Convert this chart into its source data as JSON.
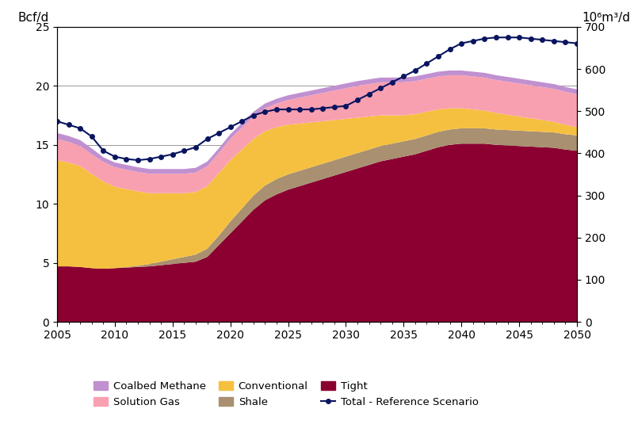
{
  "years": [
    2005,
    2006,
    2007,
    2008,
    2009,
    2010,
    2011,
    2012,
    2013,
    2014,
    2015,
    2016,
    2017,
    2018,
    2019,
    2020,
    2021,
    2022,
    2023,
    2024,
    2025,
    2026,
    2027,
    2028,
    2029,
    2030,
    2031,
    2032,
    2033,
    2034,
    2035,
    2036,
    2037,
    2038,
    2039,
    2040,
    2041,
    2042,
    2043,
    2044,
    2045,
    2046,
    2047,
    2048,
    2049,
    2050
  ],
  "tight": [
    4.7,
    4.7,
    4.65,
    4.55,
    4.5,
    4.55,
    4.6,
    4.65,
    4.7,
    4.8,
    4.9,
    5.0,
    5.1,
    5.5,
    6.5,
    7.5,
    8.5,
    9.5,
    10.3,
    10.8,
    11.2,
    11.5,
    11.8,
    12.1,
    12.4,
    12.7,
    13.0,
    13.3,
    13.6,
    13.8,
    14.0,
    14.2,
    14.5,
    14.8,
    15.0,
    15.1,
    15.1,
    15.1,
    15.0,
    14.95,
    14.9,
    14.85,
    14.8,
    14.75,
    14.6,
    14.5
  ],
  "shale": [
    0.0,
    0.0,
    0.0,
    0.0,
    0.0,
    0.0,
    0.05,
    0.1,
    0.2,
    0.3,
    0.4,
    0.5,
    0.6,
    0.7,
    0.8,
    1.0,
    1.1,
    1.2,
    1.25,
    1.3,
    1.3,
    1.3,
    1.3,
    1.3,
    1.3,
    1.3,
    1.3,
    1.3,
    1.3,
    1.3,
    1.3,
    1.3,
    1.3,
    1.3,
    1.3,
    1.3,
    1.3,
    1.3,
    1.3,
    1.3,
    1.3,
    1.3,
    1.3,
    1.3,
    1.3,
    1.3
  ],
  "conventional": [
    9.0,
    8.8,
    8.55,
    8.0,
    7.4,
    6.9,
    6.6,
    6.3,
    6.0,
    5.8,
    5.6,
    5.4,
    5.3,
    5.3,
    5.3,
    5.2,
    5.0,
    4.8,
    4.6,
    4.4,
    4.2,
    4.0,
    3.8,
    3.6,
    3.4,
    3.2,
    3.0,
    2.8,
    2.6,
    2.4,
    2.2,
    2.1,
    2.0,
    1.9,
    1.8,
    1.7,
    1.6,
    1.5,
    1.4,
    1.3,
    1.2,
    1.1,
    1.0,
    0.9,
    0.8,
    0.7
  ],
  "solution_gas": [
    1.8,
    1.75,
    1.7,
    1.65,
    1.65,
    1.65,
    1.65,
    1.65,
    1.65,
    1.65,
    1.65,
    1.65,
    1.65,
    1.68,
    1.7,
    1.8,
    1.85,
    1.9,
    1.95,
    2.0,
    2.1,
    2.2,
    2.3,
    2.4,
    2.5,
    2.6,
    2.7,
    2.75,
    2.8,
    2.8,
    2.8,
    2.8,
    2.8,
    2.8,
    2.8,
    2.8,
    2.8,
    2.8,
    2.8,
    2.8,
    2.8,
    2.8,
    2.8,
    2.8,
    2.8,
    2.8
  ],
  "coalbed_methane": [
    0.5,
    0.5,
    0.5,
    0.5,
    0.4,
    0.4,
    0.4,
    0.4,
    0.4,
    0.4,
    0.4,
    0.4,
    0.4,
    0.4,
    0.4,
    0.4,
    0.4,
    0.4,
    0.4,
    0.4,
    0.4,
    0.4,
    0.4,
    0.4,
    0.4,
    0.4,
    0.4,
    0.4,
    0.4,
    0.4,
    0.4,
    0.4,
    0.4,
    0.4,
    0.4,
    0.4,
    0.4,
    0.4,
    0.4,
    0.4,
    0.4,
    0.4,
    0.4,
    0.4,
    0.4,
    0.4
  ],
  "total_ref": [
    17.0,
    16.7,
    16.4,
    15.7,
    14.5,
    14.0,
    13.8,
    13.7,
    13.8,
    14.0,
    14.2,
    14.5,
    14.8,
    15.5,
    16.0,
    16.5,
    17.0,
    17.5,
    17.8,
    18.0,
    18.0,
    18.0,
    18.0,
    18.1,
    18.2,
    18.3,
    18.8,
    19.3,
    19.8,
    20.3,
    20.8,
    21.3,
    21.9,
    22.5,
    23.1,
    23.6,
    23.8,
    24.0,
    24.1,
    24.1,
    24.1,
    24.0,
    23.9,
    23.8,
    23.7,
    23.6
  ],
  "color_tight": "#8B0030",
  "color_shale": "#A89070",
  "color_conventional": "#F5C040",
  "color_solution_gas": "#F9A0B0",
  "color_coalbed_methane": "#C090D0",
  "color_total": "#0A1560",
  "ylabel_left": "Bcf/d",
  "ylabel_right": "10⁶m³/d",
  "ylim_left": [
    0,
    25
  ],
  "ylim_right": [
    0,
    700
  ],
  "yticks_left": [
    0,
    5,
    10,
    15,
    20,
    25
  ],
  "yticks_right": [
    0,
    100,
    200,
    300,
    400,
    500,
    600,
    700
  ],
  "xlim": [
    2005,
    2050
  ],
  "xticks": [
    2005,
    2010,
    2015,
    2020,
    2025,
    2030,
    2035,
    2040,
    2045,
    2050
  ]
}
